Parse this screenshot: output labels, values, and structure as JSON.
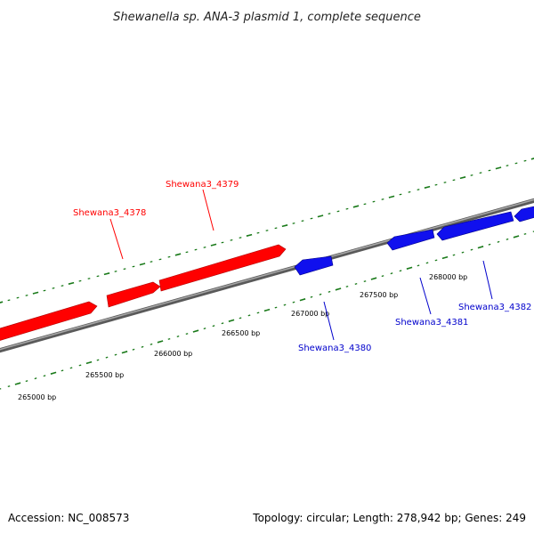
{
  "title": "Shewanella sp. ANA-3 plasmid 1, complete sequence",
  "footer": {
    "accession": "Accession: NC_008573",
    "summary": "Topology: circular; Length: 278,942 bp; Genes: 249"
  },
  "colors": {
    "forward": "#ff0000",
    "reverse": "#0000ff",
    "tick": "#1a7a1a",
    "backbone": "#808080"
  },
  "position_labels": [
    "265000 bp",
    "265500 bp",
    "266000 bp",
    "266500 bp",
    "267000 bp",
    "267500 bp",
    "268000 bp"
  ],
  "genes": [
    {
      "name": "Shewana3_4378",
      "strand": "forward"
    },
    {
      "name": "Shewana3_4379",
      "strand": "forward"
    },
    {
      "name": "Shewana3_4380",
      "strand": "reverse"
    },
    {
      "name": "Shewana3_4381",
      "strand": "reverse"
    },
    {
      "name": "Shewana3_4382",
      "strand": "reverse"
    }
  ]
}
